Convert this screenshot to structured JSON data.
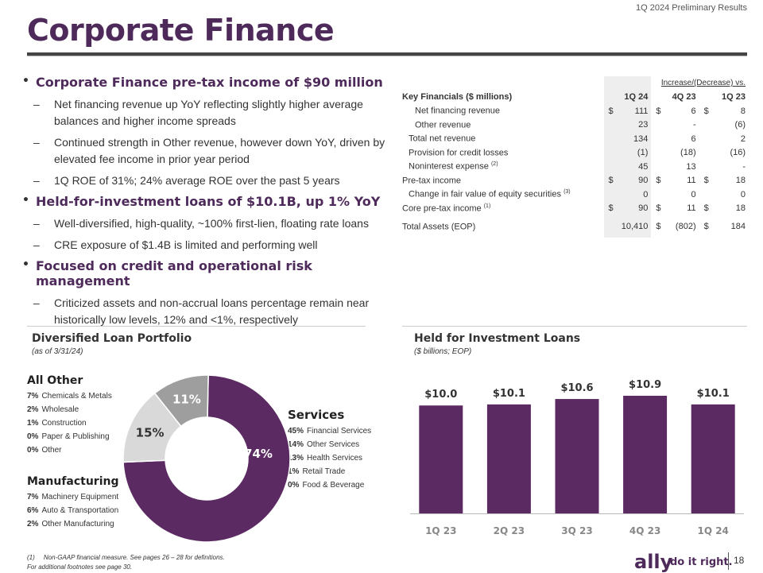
{
  "header": {
    "subtitle": "1Q 2024 Preliminary Results",
    "title": "Corporate Finance"
  },
  "bullets": [
    {
      "text": "Corporate Finance pre-tax income of $90 million",
      "subs": [
        "Net financing revenue up YoY reflecting slightly higher average balances and higher income spreads",
        "Continued strength in Other revenue, however down YoY, driven by elevated fee income in prior year period",
        "1Q ROE of 31%; 24% average ROE over the past 5 years"
      ]
    },
    {
      "text": "Held-for-investment loans of $10.1B, up 1% YoY",
      "subs": [
        "Well-diversified, high-quality, ~100% first-lien, floating rate loans",
        "CRE exposure of $1.4B is limited and performing well"
      ]
    },
    {
      "text": "Focused on credit and operational risk management",
      "subs": [
        "Criticized assets and non-accrual loans percentage remain near historically low levels, 12% and <1%, respectively"
      ]
    }
  ],
  "table": {
    "super_header": "Increase/(Decrease) vs.",
    "title": "Key Financials ($ millions)",
    "cols": [
      "1Q 24",
      "4Q 23",
      "1Q 23"
    ],
    "rows": [
      {
        "label": "Net financing revenue",
        "sup": "",
        "c1": "$",
        "v1": "111",
        "c2": "$",
        "v2": "6",
        "c3": "$",
        "v3": "8"
      },
      {
        "label": "Other revenue",
        "sup": "",
        "c1": "",
        "v1": "23",
        "c2": "",
        "v2": "-",
        "c3": "",
        "v3": "(6)"
      },
      {
        "label": "Total net revenue",
        "sup": "",
        "c1": "",
        "v1": "134",
        "c2": "",
        "v2": "6",
        "c3": "",
        "v3": "2"
      },
      {
        "label": "Provision for credit losses",
        "sup": "",
        "c1": "",
        "v1": "(1)",
        "c2": "",
        "v2": "(18)",
        "c3": "",
        "v3": "(16)"
      },
      {
        "label": "Noninterest expense",
        "sup": "(2)",
        "c1": "",
        "v1": "45",
        "c2": "",
        "v2": "13",
        "c3": "",
        "v3": "-"
      },
      {
        "label": "Pre-tax income",
        "sup": "",
        "c1": "$",
        "v1": "90",
        "c2": "$",
        "v2": "11",
        "c3": "$",
        "v3": "18"
      },
      {
        "label": "Change in fair value of equity securities",
        "sup": "(3)",
        "c1": "",
        "v1": "0",
        "c2": "",
        "v2": "0",
        "c3": "",
        "v3": "0"
      },
      {
        "label": "Core pre-tax income",
        "sup": "(1)",
        "c1": "$",
        "v1": "90",
        "c2": "$",
        "v2": "11",
        "c3": "$",
        "v3": "18"
      },
      {
        "label": "Total Assets (EOP)",
        "sup": "",
        "c1": "",
        "v1": "10,410",
        "c2": "$",
        "v2": "(802)",
        "c3": "$",
        "v3": "184"
      }
    ]
  },
  "portfolio": {
    "title": "Diversified Loan Portfolio",
    "subtitle": "(as of 3/31/24)",
    "groups": [
      {
        "title": "All Other",
        "items": [
          [
            "7%",
            "Chemicals & Metals"
          ],
          [
            "2%",
            "Wholesale"
          ],
          [
            "1%",
            "Construction"
          ],
          [
            "0%",
            "Paper & Publishing"
          ],
          [
            "0%",
            "Other"
          ]
        ]
      },
      {
        "title": "Manufacturing",
        "items": [
          [
            "7%",
            "Machinery Equipment"
          ],
          [
            "6%",
            "Auto & Transportation"
          ],
          [
            "2%",
            "Other Manufacturing"
          ]
        ]
      },
      {
        "title": "Services",
        "items": [
          [
            "45%",
            "Financial Services"
          ],
          [
            "14%",
            "Other Services"
          ],
          [
            "13%",
            "Health Services"
          ],
          [
            "1%",
            "Retail Trade"
          ],
          [
            "0%",
            "Food & Beverage"
          ]
        ]
      }
    ]
  },
  "chart_data": [
    {
      "type": "pie",
      "title": "Diversified Loan Portfolio",
      "categories": [
        "Services",
        "All Other",
        "Manufacturing"
      ],
      "values": [
        74,
        11,
        15
      ],
      "labels": [
        "74%",
        "11%",
        "15%"
      ],
      "colors": [
        "#5b2a62",
        "#9e9e9e",
        "#d9d9d9"
      ]
    },
    {
      "type": "bar",
      "title": "Held for Investment Loans",
      "subtitle": "($ billions; EOP)",
      "categories": [
        "1Q 23",
        "2Q 23",
        "3Q 23",
        "4Q 23",
        "1Q 24"
      ],
      "values": [
        10.0,
        10.1,
        10.6,
        10.9,
        10.1
      ],
      "labels": [
        "$10.0",
        "$10.1",
        "$10.6",
        "$10.9",
        "$10.1"
      ],
      "ylim": [
        0,
        10.9
      ],
      "color": "#5b2a62"
    }
  ],
  "footer": {
    "note1_marker": "(1)",
    "note1": "Non-GAAP financial measure. See pages 26 – 28 for definitions.",
    "note2": "For additional footnotes see page 30.",
    "logo": "ally",
    "tagline": "do it right.",
    "page": "18"
  }
}
